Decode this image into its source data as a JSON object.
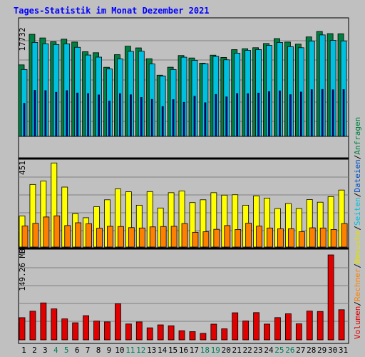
{
  "chart_data": [
    {
      "type": "bar",
      "title": "Tages-Statistik im Monat Dezember 2021",
      "ymax_label": "17732",
      "ymax": 17732,
      "categories": [
        "1",
        "2",
        "3",
        "4",
        "5",
        "6",
        "7",
        "8",
        "9",
        "10",
        "11",
        "12",
        "13",
        "14",
        "15",
        "16",
        "17",
        "18",
        "19",
        "20",
        "21",
        "22",
        "23",
        "24",
        "25",
        "26",
        "27",
        "28",
        "29",
        "30",
        "31"
      ],
      "weekend_days": [
        "4",
        "5",
        "11",
        "12",
        "18",
        "19",
        "25",
        "26"
      ],
      "series": [
        {
          "name": "Anfragen",
          "color": "#008040",
          "values": [
            12000,
            17130,
            16520,
            15880,
            16310,
            15830,
            14210,
            14040,
            11600,
            13710,
            15130,
            14850,
            13030,
            10270,
            11610,
            13570,
            13160,
            12290,
            13630,
            13250,
            14560,
            14710,
            14880,
            15590,
            16410,
            15830,
            15480,
            16690,
            17600,
            17240,
            17220
          ]
        },
        {
          "name": "Dateien",
          "color": "#00c0e0",
          "values": [
            11220,
            15760,
            15540,
            15420,
            15530,
            14950,
            13650,
            13300,
            11320,
            12990,
            14270,
            14290,
            12150,
            10140,
            11220,
            13290,
            12760,
            12190,
            13420,
            12850,
            13970,
            14430,
            14570,
            15270,
            15760,
            15050,
            14880,
            16000,
            17030,
            16110,
            16020
          ]
        },
        {
          "name": "Seiten",
          "color": "#0000c0",
          "values": [
            5550,
            7720,
            7680,
            7400,
            7680,
            7280,
            7190,
            6960,
            5930,
            7180,
            6980,
            6530,
            6210,
            5010,
            6170,
            5720,
            6740,
            5650,
            7040,
            6630,
            7200,
            7170,
            7270,
            7520,
            7640,
            7000,
            7440,
            7840,
            7880,
            7810,
            7860
          ]
        }
      ]
    },
    {
      "type": "bar",
      "ymax_label": "451",
      "ymax": 451,
      "series": [
        {
          "name": "Seiten",
          "color": "#ffff00",
          "values": [
            0,
            0,
            0,
            0,
            0,
            0,
            0,
            0,
            0,
            0,
            0,
            0,
            0,
            0,
            0,
            0,
            0,
            0,
            0,
            0,
            0,
            0,
            0,
            0,
            0,
            0,
            0,
            0,
            0,
            0,
            0
          ]
        },
        {
          "name": "Besuche",
          "color": "#ffff00",
          "values": [
            166,
            335,
            353,
            450,
            321,
            179,
            157,
            216,
            253,
            311,
            296,
            224,
            297,
            209,
            291,
            300,
            238,
            253,
            291,
            278,
            280,
            224,
            274,
            262,
            206,
            233,
            206,
            254,
            240,
            270,
            305
          ]
        },
        {
          "name": "Rechner",
          "color": "#ff8000",
          "values": [
            113,
            127,
            161,
            167,
            115,
            130,
            125,
            101,
            111,
            110,
            104,
            102,
            108,
            110,
            111,
            126,
            79,
            82,
            95,
            115,
            94,
            128,
            112,
            102,
            98,
            98,
            82,
            103,
            102,
            94,
            126
          ]
        }
      ]
    },
    {
      "type": "bar",
      "ymax_label": "149.26 MB",
      "ymax": 149.26,
      "series": [
        {
          "name": "Volumen",
          "color": "#e00000",
          "values": [
            38.7,
            50.0,
            64.4,
            54.0,
            36.6,
            29.8,
            42.2,
            32.8,
            31.3,
            62.9,
            27.7,
            31.2,
            21.0,
            26.1,
            24.6,
            16.0,
            14.4,
            11.4,
            27.4,
            19.3,
            47.2,
            33.0,
            47.5,
            27.5,
            38.8,
            45.5,
            28.0,
            50.2,
            49.5,
            148.0,
            52.5
          ]
        }
      ]
    }
  ],
  "legend": [
    {
      "label": "Volumen",
      "color": "#e00000"
    },
    {
      "label": "Rechner",
      "color": "#ff8000"
    },
    {
      "label": "Besuche",
      "color": "#e0e000"
    },
    {
      "label": "Seiten",
      "color": "#00c0e0"
    },
    {
      "label": "Dateien",
      "color": "#0050c0"
    },
    {
      "label": "Anfragen",
      "color": "#008040"
    }
  ],
  "legend_separator": "/",
  "colors": {
    "background": "#c0c0c0",
    "plot_bg": "#c0c0c0",
    "title": "#0000ff",
    "weekday_tick": "#000000",
    "weekend_tick": "#00805a",
    "ylabel": "#000000"
  }
}
